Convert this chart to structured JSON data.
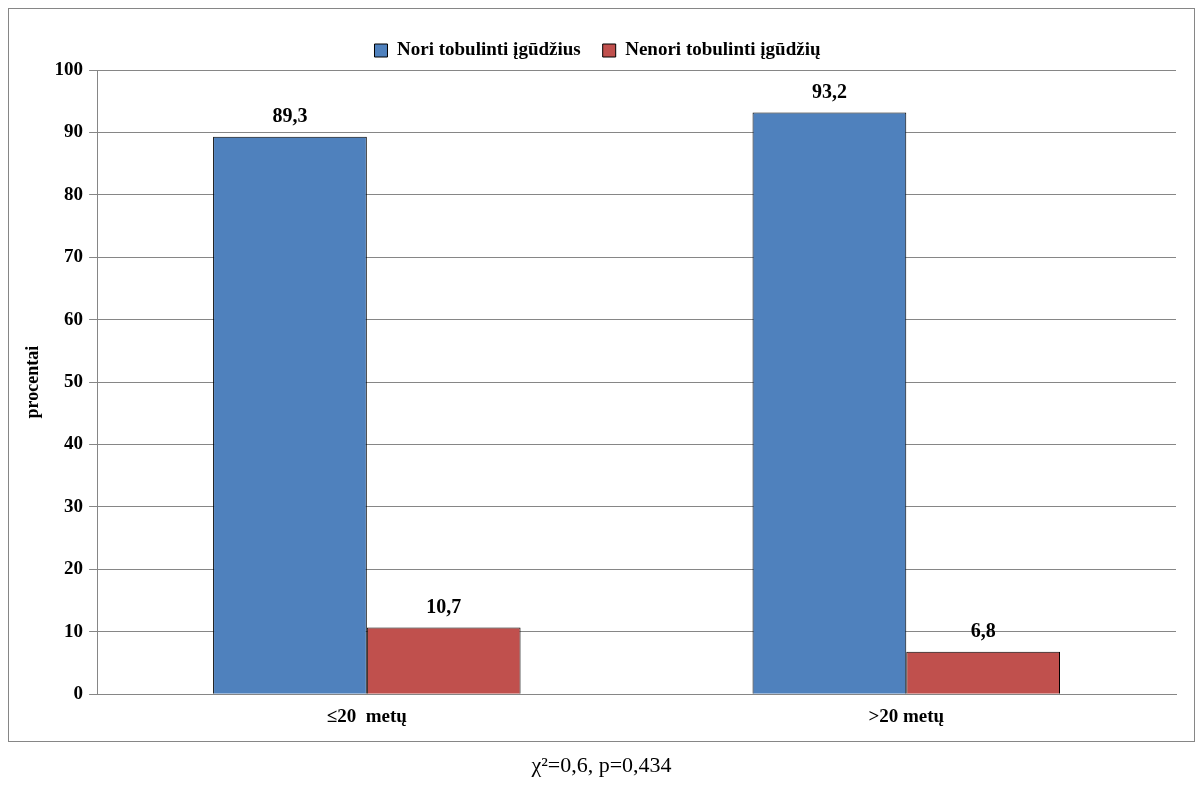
{
  "chart_data": {
    "type": "bar",
    "ylabel": "procentai",
    "categories": [
      "≤20  metų",
      ">20 metų"
    ],
    "series": [
      {
        "name": "Nori tobulinti įgūdžius",
        "color": "#4f81bd",
        "values": [
          89.3,
          93.2
        ],
        "value_labels": [
          "89,3",
          "93,2"
        ]
      },
      {
        "name": "Nenori tobulinti įgūdžių",
        "color": "#c0504d",
        "values": [
          10.7,
          6.8
        ],
        "value_labels": [
          "10,7",
          "6,8"
        ]
      }
    ],
    "ylim": [
      0,
      100
    ],
    "yticks": [
      0,
      10,
      20,
      30,
      40,
      50,
      60,
      70,
      80,
      90,
      100
    ],
    "grid": "y",
    "legend": "top",
    "annotations": [
      "χ²=0,6, p=0,434"
    ]
  }
}
